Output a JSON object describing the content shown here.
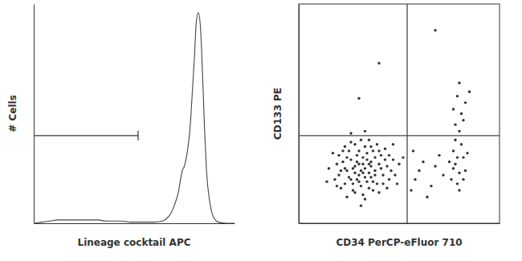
{
  "chart_data": [
    {
      "type": "line",
      "x_label": "Lineage cocktail APC",
      "y_label": "# Cells",
      "x": [
        0,
        4,
        8,
        12,
        16,
        20,
        24,
        28,
        32,
        36,
        40,
        44,
        48,
        52,
        56,
        60,
        64,
        66,
        68,
        70,
        72,
        74,
        75,
        76,
        78,
        79,
        80,
        81,
        82,
        83,
        84,
        85,
        86,
        88,
        90,
        92,
        96,
        100
      ],
      "values": [
        0,
        0.5,
        1,
        1.5,
        1.5,
        1.5,
        1.5,
        1.5,
        1.5,
        1,
        1,
        1,
        0.5,
        0.5,
        0.5,
        0.5,
        1,
        2,
        4,
        8,
        14,
        24,
        26,
        30,
        45,
        60,
        75,
        92,
        96,
        90,
        70,
        45,
        25,
        8,
        2,
        0.5,
        0,
        0
      ],
      "xlim": [
        0,
        100
      ],
      "ylim": [
        0,
        100
      ],
      "tick_labels": false,
      "color": "#444444",
      "gate": {
        "x": [
          0,
          52
        ],
        "y": 40
      }
    },
    {
      "type": "scatter",
      "x_label": "CD34 PerCP-eFluor 710",
      "y_label": "CD133 PE",
      "x": [
        33,
        30,
        36,
        28,
        38,
        32,
        26,
        40,
        34,
        29,
        24,
        42,
        31,
        37,
        22,
        35,
        27,
        44,
        33,
        20,
        39,
        25,
        30,
        36,
        32,
        41,
        23,
        28,
        45,
        34,
        19,
        37,
        26,
        31,
        43,
        21,
        35,
        29,
        38,
        24,
        46,
        27,
        33,
        40,
        22,
        36,
        30,
        18,
        42,
        32,
        25,
        39,
        28,
        34,
        47,
        23,
        31,
        37,
        20,
        44,
        35,
        26,
        41,
        29,
        33,
        21,
        38,
        30,
        48,
        24,
        36,
        27,
        43,
        32,
        19,
        40,
        28,
        35,
        23,
        45,
        15,
        50,
        17,
        49,
        33,
        31,
        52,
        14,
        47,
        26,
        58,
        62,
        57,
        66,
        60,
        70,
        64,
        68,
        56,
        72,
        76,
        78,
        80,
        77,
        82,
        79,
        81,
        75,
        83,
        78,
        80,
        84,
        77,
        82,
        79,
        78,
        81,
        80,
        83,
        79,
        82,
        77,
        85,
        80,
        40,
        30,
        68
      ],
      "values": [
        25,
        22,
        28,
        26,
        24,
        30,
        20,
        27,
        19,
        31,
        24,
        22,
        17,
        33,
        28,
        23,
        15,
        26,
        35,
        22,
        18,
        33,
        27,
        21,
        13,
        31,
        18,
        36,
        20,
        29,
        27,
        15,
        29,
        24,
        34,
        16,
        38,
        20,
        30,
        12,
        24,
        25,
        21,
        14,
        33,
        26,
        33,
        20,
        18,
        27,
        21,
        36,
        14,
        32,
        29,
        25,
        38,
        19,
        31,
        16,
        16,
        37,
        25,
        28,
        11,
        24,
        22,
        19,
        22,
        30,
        35,
        18,
        29,
        23,
        17,
        33,
        23,
        27,
        35,
        31,
        25,
        27,
        32,
        18,
        42,
        8,
        30,
        19,
        36,
        41,
        20,
        28,
        33,
        17,
        24,
        31,
        12,
        26,
        15,
        22,
        20,
        27,
        23,
        33,
        30,
        18,
        36,
        28,
        24,
        38,
        15,
        32,
        25,
        20,
        30,
        45,
        50,
        42,
        55,
        58,
        47,
        52,
        60,
        64,
        73,
        57,
        88
      ],
      "xlim": [
        0,
        100
      ],
      "ylim": [
        0,
        100
      ],
      "tick_labels": false,
      "color": "#111111",
      "quadrant": {
        "x": 54,
        "y": 40
      }
    }
  ]
}
